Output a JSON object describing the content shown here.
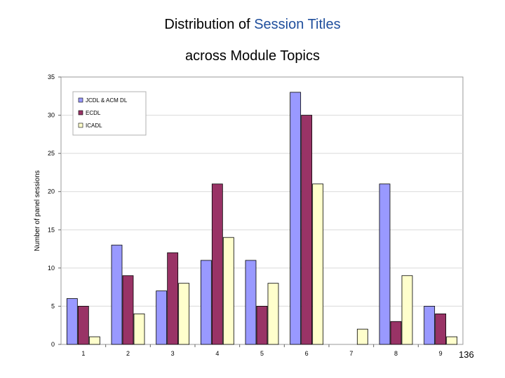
{
  "slide": {
    "title_part1": "Distribution of ",
    "title_accent": "Session Titles",
    "title_line2": "across Module Topics",
    "page_number": "136"
  },
  "colors": {
    "accent_text": "#1f4e9c",
    "plot_bg": "#ffffff",
    "grid": "#d9d9d9"
  },
  "chart_data": {
    "type": "bar",
    "title": "",
    "xlabel": "",
    "ylabel": "Number of panel sessions",
    "categories": [
      "1",
      "2",
      "3",
      "4",
      "5",
      "6",
      "7",
      "8",
      "9"
    ],
    "ylim": [
      0,
      35
    ],
    "yticks": [
      0,
      5,
      10,
      15,
      20,
      25,
      30,
      35
    ],
    "grid": true,
    "legend_position": "top-left",
    "series": [
      {
        "name": "JCDL & ACM DL",
        "color": "#9999ff",
        "values": [
          6,
          13,
          7,
          11,
          11,
          33,
          0,
          21,
          5
        ]
      },
      {
        "name": "ECDL",
        "color": "#993366",
        "values": [
          5,
          9,
          12,
          21,
          5,
          30,
          0,
          3,
          4
        ]
      },
      {
        "name": "ICADL",
        "color": "#ffffcc",
        "values": [
          1,
          4,
          8,
          14,
          8,
          21,
          2,
          9,
          1
        ]
      }
    ]
  }
}
